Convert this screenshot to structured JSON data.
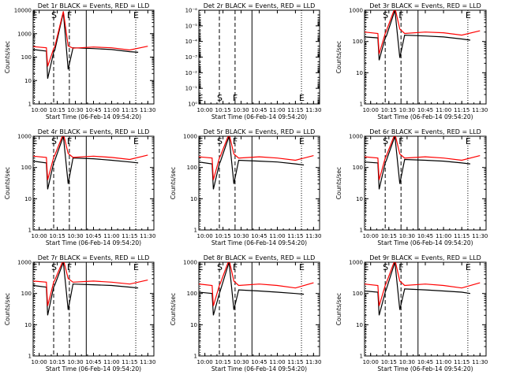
{
  "chart_data": [
    {
      "type": "line",
      "title": "Det 1r BLACK = Events, RED = LLD",
      "xlabel": "Start Time (06-Feb-14 09:54:20)",
      "ylabel": "Counts/sec",
      "xlim": [
        "09:55",
        "11:35"
      ],
      "ylim": [
        1,
        10000
      ],
      "yscale": "log",
      "xticks": [
        "10:00",
        "10:15",
        "10:30",
        "10:45",
        "11:00",
        "11:15",
        "11:30"
      ],
      "yticks": [
        "1",
        "10",
        "100",
        "1000",
        "10000"
      ],
      "event_markers": [
        {
          "label": "E",
          "time": "09:56",
          "style": "dotted"
        },
        {
          "label": "S",
          "time": "10:12",
          "style": "dashed"
        },
        {
          "label": "F",
          "time": "10:25",
          "style": "dashed"
        },
        {
          "label": "",
          "time": "10:39",
          "style": "solid"
        },
        {
          "label": "E",
          "time": "11:20",
          "style": "dotted"
        }
      ],
      "series": [
        {
          "name": "Events",
          "color": "#000000",
          "x": [
            "09:55",
            "10:06",
            "10:07",
            "10:12",
            "10:13",
            "10:20",
            "10:24",
            "10:28",
            "10:45",
            "11:00",
            "11:15",
            "11:22"
          ],
          "values": [
            210,
            180,
            12,
            160,
            200,
            8000,
            30,
            250,
            230,
            210,
            170,
            160
          ]
        },
        {
          "name": "LLD",
          "color": "#ff0000",
          "x": [
            "09:55",
            "10:06",
            "10:07",
            "10:12",
            "10:13",
            "10:20",
            "10:24",
            "10:28",
            "10:45",
            "11:00",
            "11:15",
            "11:30"
          ],
          "values": [
            280,
            250,
            40,
            230,
            280,
            9000,
            300,
            240,
            270,
            250,
            200,
            290
          ]
        }
      ]
    },
    {
      "type": "line",
      "title": "Det 2r BLACK = Events, RED = LLD",
      "xlabel": "Start Time (06-Feb-14 09:54:20)",
      "ylabel": "",
      "xlim": [
        "09:55",
        "11:35"
      ],
      "ylim": [
        1,
        1e-06
      ],
      "yscale": "log",
      "xticks": [
        "10:00",
        "10:15",
        "10:30",
        "10:45",
        "11:00",
        "11:15",
        "11:30"
      ],
      "yticks": [
        "10⁰",
        "10⁻¹",
        "10⁻²",
        "10⁻³",
        "10⁻⁴",
        "10⁻⁵",
        "10⁻⁶"
      ],
      "event_markers": [
        {
          "label": "E",
          "time": "09:56",
          "style": "dotted"
        },
        {
          "label": "S",
          "time": "10:12",
          "style": "dashed"
        },
        {
          "label": "F",
          "time": "10:25",
          "style": "dashed"
        },
        {
          "label": "",
          "time": "10:39",
          "style": "solid"
        },
        {
          "label": "E",
          "time": "11:20",
          "style": "dotted"
        }
      ],
      "series": []
    },
    {
      "type": "line",
      "title": "Det 3r BLACK = Events, RED = LLD",
      "xlabel": "Start Time (06-Feb-14 09:54:20)",
      "ylabel": "Counts/sec",
      "xlim": [
        "09:55",
        "11:35"
      ],
      "ylim": [
        1,
        1000
      ],
      "yscale": "log",
      "xticks": [
        "10:00",
        "10:15",
        "10:30",
        "10:45",
        "11:00",
        "11:15",
        "11:30"
      ],
      "yticks": [
        "1",
        "10",
        "100",
        "1000"
      ],
      "event_markers": [
        {
          "label": "E",
          "time": "09:56",
          "style": "dotted"
        },
        {
          "label": "S",
          "time": "10:12",
          "style": "dashed"
        },
        {
          "label": "F",
          "time": "10:25",
          "style": "dashed"
        },
        {
          "label": "",
          "time": "10:39",
          "style": "solid"
        },
        {
          "label": "E",
          "time": "11:20",
          "style": "dotted"
        }
      ],
      "series": [
        {
          "name": "Events",
          "color": "#000000",
          "x": [
            "09:55",
            "10:06",
            "10:07",
            "10:12",
            "10:13",
            "10:20",
            "10:24",
            "10:28",
            "10:45",
            "11:00",
            "11:15",
            "11:22"
          ],
          "values": [
            140,
            130,
            25,
            130,
            150,
            1000,
            30,
            160,
            150,
            140,
            120,
            110
          ]
        },
        {
          "name": "LLD",
          "color": "#ff0000",
          "x": [
            "09:55",
            "10:06",
            "10:07",
            "10:12",
            "10:13",
            "10:20",
            "10:24",
            "10:28",
            "10:45",
            "11:00",
            "11:15",
            "11:30"
          ],
          "values": [
            200,
            180,
            40,
            180,
            220,
            1200,
            250,
            180,
            200,
            190,
            160,
            220
          ]
        }
      ]
    },
    {
      "type": "line",
      "title": "Det 4r BLACK = Events, RED = LLD",
      "xlabel": "Start Time (06-Feb-14 09:54:20)",
      "ylabel": "Counts/sec",
      "xlim": [
        "09:55",
        "11:35"
      ],
      "ylim": [
        1,
        1000
      ],
      "yscale": "log",
      "xticks": [
        "10:00",
        "10:15",
        "10:30",
        "10:45",
        "11:00",
        "11:15",
        "11:30"
      ],
      "yticks": [
        "1",
        "10",
        "100",
        "1000"
      ],
      "event_markers": [
        {
          "label": "E",
          "time": "09:56",
          "style": "dotted"
        },
        {
          "label": "S",
          "time": "10:12",
          "style": "dashed"
        },
        {
          "label": "F",
          "time": "10:25",
          "style": "dashed"
        },
        {
          "label": "",
          "time": "10:39",
          "style": "solid"
        },
        {
          "label": "E",
          "time": "11:20",
          "style": "dotted"
        }
      ],
      "series": [
        {
          "name": "Events",
          "color": "#000000",
          "x": [
            "09:55",
            "10:06",
            "10:07",
            "10:12",
            "10:13",
            "10:20",
            "10:24",
            "10:28",
            "10:45",
            "11:00",
            "11:15",
            "11:22"
          ],
          "values": [
            160,
            140,
            20,
            140,
            170,
            1000,
            30,
            200,
            190,
            170,
            150,
            140
          ]
        },
        {
          "name": "LLD",
          "color": "#ff0000",
          "x": [
            "09:55",
            "10:06",
            "10:07",
            "10:12",
            "10:13",
            "10:20",
            "10:24",
            "10:28",
            "10:45",
            "11:00",
            "11:15",
            "11:30"
          ],
          "values": [
            230,
            210,
            40,
            210,
            250,
            1200,
            280,
            210,
            230,
            210,
            180,
            250
          ]
        }
      ]
    },
    {
      "type": "line",
      "title": "Det 5r BLACK = Events, RED = LLD",
      "xlabel": "Start Time (06-Feb-14 09:54:20)",
      "ylabel": "Counts/sec",
      "xlim": [
        "09:55",
        "11:35"
      ],
      "ylim": [
        1,
        1000
      ],
      "yscale": "log",
      "xticks": [
        "10:00",
        "10:15",
        "10:30",
        "10:45",
        "11:00",
        "11:15",
        "11:30"
      ],
      "yticks": [
        "1",
        "10",
        "100",
        "1000"
      ],
      "event_markers": [
        {
          "label": "E",
          "time": "09:56",
          "style": "dotted"
        },
        {
          "label": "S",
          "time": "10:12",
          "style": "dashed"
        },
        {
          "label": "F",
          "time": "10:25",
          "style": "dashed"
        },
        {
          "label": "",
          "time": "10:39",
          "style": "solid"
        },
        {
          "label": "E",
          "time": "11:20",
          "style": "dotted"
        }
      ],
      "series": [
        {
          "name": "Events",
          "color": "#000000",
          "x": [
            "09:55",
            "10:06",
            "10:07",
            "10:12",
            "10:13",
            "10:20",
            "10:24",
            "10:28",
            "10:45",
            "11:00",
            "11:15",
            "11:22"
          ],
          "values": [
            150,
            130,
            20,
            130,
            160,
            1000,
            30,
            170,
            160,
            150,
            130,
            120
          ]
        },
        {
          "name": "LLD",
          "color": "#ff0000",
          "x": [
            "09:55",
            "10:06",
            "10:07",
            "10:12",
            "10:13",
            "10:20",
            "10:24",
            "10:28",
            "10:45",
            "11:00",
            "11:15",
            "11:30"
          ],
          "values": [
            220,
            200,
            40,
            200,
            240,
            1200,
            270,
            200,
            220,
            200,
            170,
            240
          ]
        }
      ]
    },
    {
      "type": "line",
      "title": "Det 6r BLACK = Events, RED = LLD",
      "xlabel": "Start Time (06-Feb-14 09:54:20)",
      "ylabel": "Counts/sec",
      "xlim": [
        "09:55",
        "11:35"
      ],
      "ylim": [
        1,
        1000
      ],
      "yscale": "log",
      "xticks": [
        "10:00",
        "10:15",
        "10:30",
        "10:45",
        "11:00",
        "11:15",
        "11:30"
      ],
      "yticks": [
        "1",
        "10",
        "100",
        "1000"
      ],
      "event_markers": [
        {
          "label": "E",
          "time": "09:56",
          "style": "dotted"
        },
        {
          "label": "S",
          "time": "10:12",
          "style": "dashed"
        },
        {
          "label": "F",
          "time": "10:25",
          "style": "dashed"
        },
        {
          "label": "",
          "time": "10:39",
          "style": "solid"
        },
        {
          "label": "E",
          "time": "11:20",
          "style": "dotted"
        }
      ],
      "series": [
        {
          "name": "Events",
          "color": "#000000",
          "x": [
            "09:55",
            "10:06",
            "10:07",
            "10:12",
            "10:13",
            "10:20",
            "10:24",
            "10:28",
            "10:45",
            "11:00",
            "11:15",
            "11:22"
          ],
          "values": [
            150,
            140,
            20,
            140,
            170,
            1000,
            30,
            180,
            170,
            160,
            140,
            130
          ]
        },
        {
          "name": "LLD",
          "color": "#ff0000",
          "x": [
            "09:55",
            "10:06",
            "10:07",
            "10:12",
            "10:13",
            "10:20",
            "10:24",
            "10:28",
            "10:45",
            "11:00",
            "11:15",
            "11:30"
          ],
          "values": [
            220,
            200,
            40,
            200,
            240,
            1200,
            270,
            200,
            220,
            200,
            170,
            240
          ]
        }
      ]
    },
    {
      "type": "line",
      "title": "Det 7r BLACK = Events, RED = LLD",
      "xlabel": "Start Time (06-Feb-14 09:54:20)",
      "ylabel": "Counts/sec",
      "xlim": [
        "09:55",
        "11:35"
      ],
      "ylim": [
        1,
        1000
      ],
      "yscale": "log",
      "xticks": [
        "10:00",
        "10:15",
        "10:30",
        "10:45",
        "11:00",
        "11:15",
        "11:30"
      ],
      "yticks": [
        "1",
        "10",
        "100",
        "1000"
      ],
      "event_markers": [
        {
          "label": "E",
          "time": "09:56",
          "style": "dotted"
        },
        {
          "label": "S",
          "time": "10:12",
          "style": "dashed"
        },
        {
          "label": "F",
          "time": "10:25",
          "style": "dashed"
        },
        {
          "label": "",
          "time": "10:39",
          "style": "solid"
        },
        {
          "label": "E",
          "time": "11:20",
          "style": "dotted"
        }
      ],
      "series": [
        {
          "name": "Events",
          "color": "#000000",
          "x": [
            "09:55",
            "10:06",
            "10:07",
            "10:12",
            "10:13",
            "10:20",
            "10:24",
            "10:28",
            "10:45",
            "11:00",
            "11:15",
            "11:22"
          ],
          "values": [
            180,
            160,
            20,
            160,
            190,
            1000,
            30,
            200,
            190,
            180,
            160,
            150
          ]
        },
        {
          "name": "LLD",
          "color": "#ff0000",
          "x": [
            "09:55",
            "10:06",
            "10:07",
            "10:12",
            "10:13",
            "10:20",
            "10:24",
            "10:28",
            "10:45",
            "11:00",
            "11:15",
            "11:30"
          ],
          "values": [
            250,
            230,
            40,
            230,
            270,
            1200,
            300,
            230,
            250,
            230,
            200,
            270
          ]
        }
      ]
    },
    {
      "type": "line",
      "title": "Det 8r BLACK = Events, RED = LLD",
      "xlabel": "Start Time (06-Feb-14 09:54:20)",
      "ylabel": "Counts/sec",
      "xlim": [
        "09:55",
        "11:35"
      ],
      "ylim": [
        1,
        1000
      ],
      "yscale": "log",
      "xticks": [
        "10:00",
        "10:15",
        "10:30",
        "10:45",
        "11:00",
        "11:15",
        "11:30"
      ],
      "yticks": [
        "1",
        "10",
        "100",
        "1000"
      ],
      "event_markers": [
        {
          "label": "E",
          "time": "09:56",
          "style": "dotted"
        },
        {
          "label": "S",
          "time": "10:12",
          "style": "dashed"
        },
        {
          "label": "F",
          "time": "10:25",
          "style": "dashed"
        },
        {
          "label": "",
          "time": "10:39",
          "style": "solid"
        },
        {
          "label": "E",
          "time": "11:20",
          "style": "dotted"
        }
      ],
      "series": [
        {
          "name": "Events",
          "color": "#000000",
          "x": [
            "09:55",
            "10:06",
            "10:07",
            "10:12",
            "10:13",
            "10:20",
            "10:24",
            "10:28",
            "10:45",
            "11:00",
            "11:15",
            "11:22"
          ],
          "values": [
            110,
            100,
            20,
            100,
            130,
            1000,
            30,
            130,
            120,
            110,
            100,
            95
          ]
        },
        {
          "name": "LLD",
          "color": "#ff0000",
          "x": [
            "09:55",
            "10:06",
            "10:07",
            "10:12",
            "10:13",
            "10:20",
            "10:24",
            "10:28",
            "10:45",
            "11:00",
            "11:15",
            "11:30"
          ],
          "values": [
            200,
            180,
            40,
            180,
            220,
            1200,
            250,
            180,
            200,
            180,
            150,
            220
          ]
        }
      ]
    },
    {
      "type": "line",
      "title": "Det 9r BLACK = Events, RED = LLD",
      "xlabel": "Start Time (06-Feb-14 09:54:20)",
      "ylabel": "Counts/sec",
      "xlim": [
        "09:55",
        "11:35"
      ],
      "ylim": [
        1,
        1000
      ],
      "yscale": "log",
      "xticks": [
        "10:00",
        "10:15",
        "10:30",
        "10:45",
        "11:00",
        "11:15",
        "11:30"
      ],
      "yticks": [
        "1",
        "10",
        "100",
        "1000"
      ],
      "event_markers": [
        {
          "label": "E",
          "time": "09:56",
          "style": "dotted"
        },
        {
          "label": "S",
          "time": "10:12",
          "style": "dashed"
        },
        {
          "label": "F",
          "time": "10:25",
          "style": "dashed"
        },
        {
          "label": "",
          "time": "10:39",
          "style": "solid"
        },
        {
          "label": "E",
          "time": "11:20",
          "style": "dotted"
        }
      ],
      "series": [
        {
          "name": "Events",
          "color": "#000000",
          "x": [
            "09:55",
            "10:06",
            "10:07",
            "10:12",
            "10:13",
            "10:20",
            "10:24",
            "10:28",
            "10:45",
            "11:00",
            "11:15",
            "11:22"
          ],
          "values": [
            120,
            110,
            20,
            110,
            140,
            1000,
            30,
            140,
            130,
            120,
            110,
            100
          ]
        },
        {
          "name": "LLD",
          "color": "#ff0000",
          "x": [
            "09:55",
            "10:06",
            "10:07",
            "10:12",
            "10:13",
            "10:20",
            "10:24",
            "10:28",
            "10:45",
            "11:00",
            "11:15",
            "11:30"
          ],
          "values": [
            200,
            180,
            40,
            180,
            220,
            1200,
            250,
            180,
            200,
            180,
            150,
            220
          ]
        }
      ]
    }
  ]
}
